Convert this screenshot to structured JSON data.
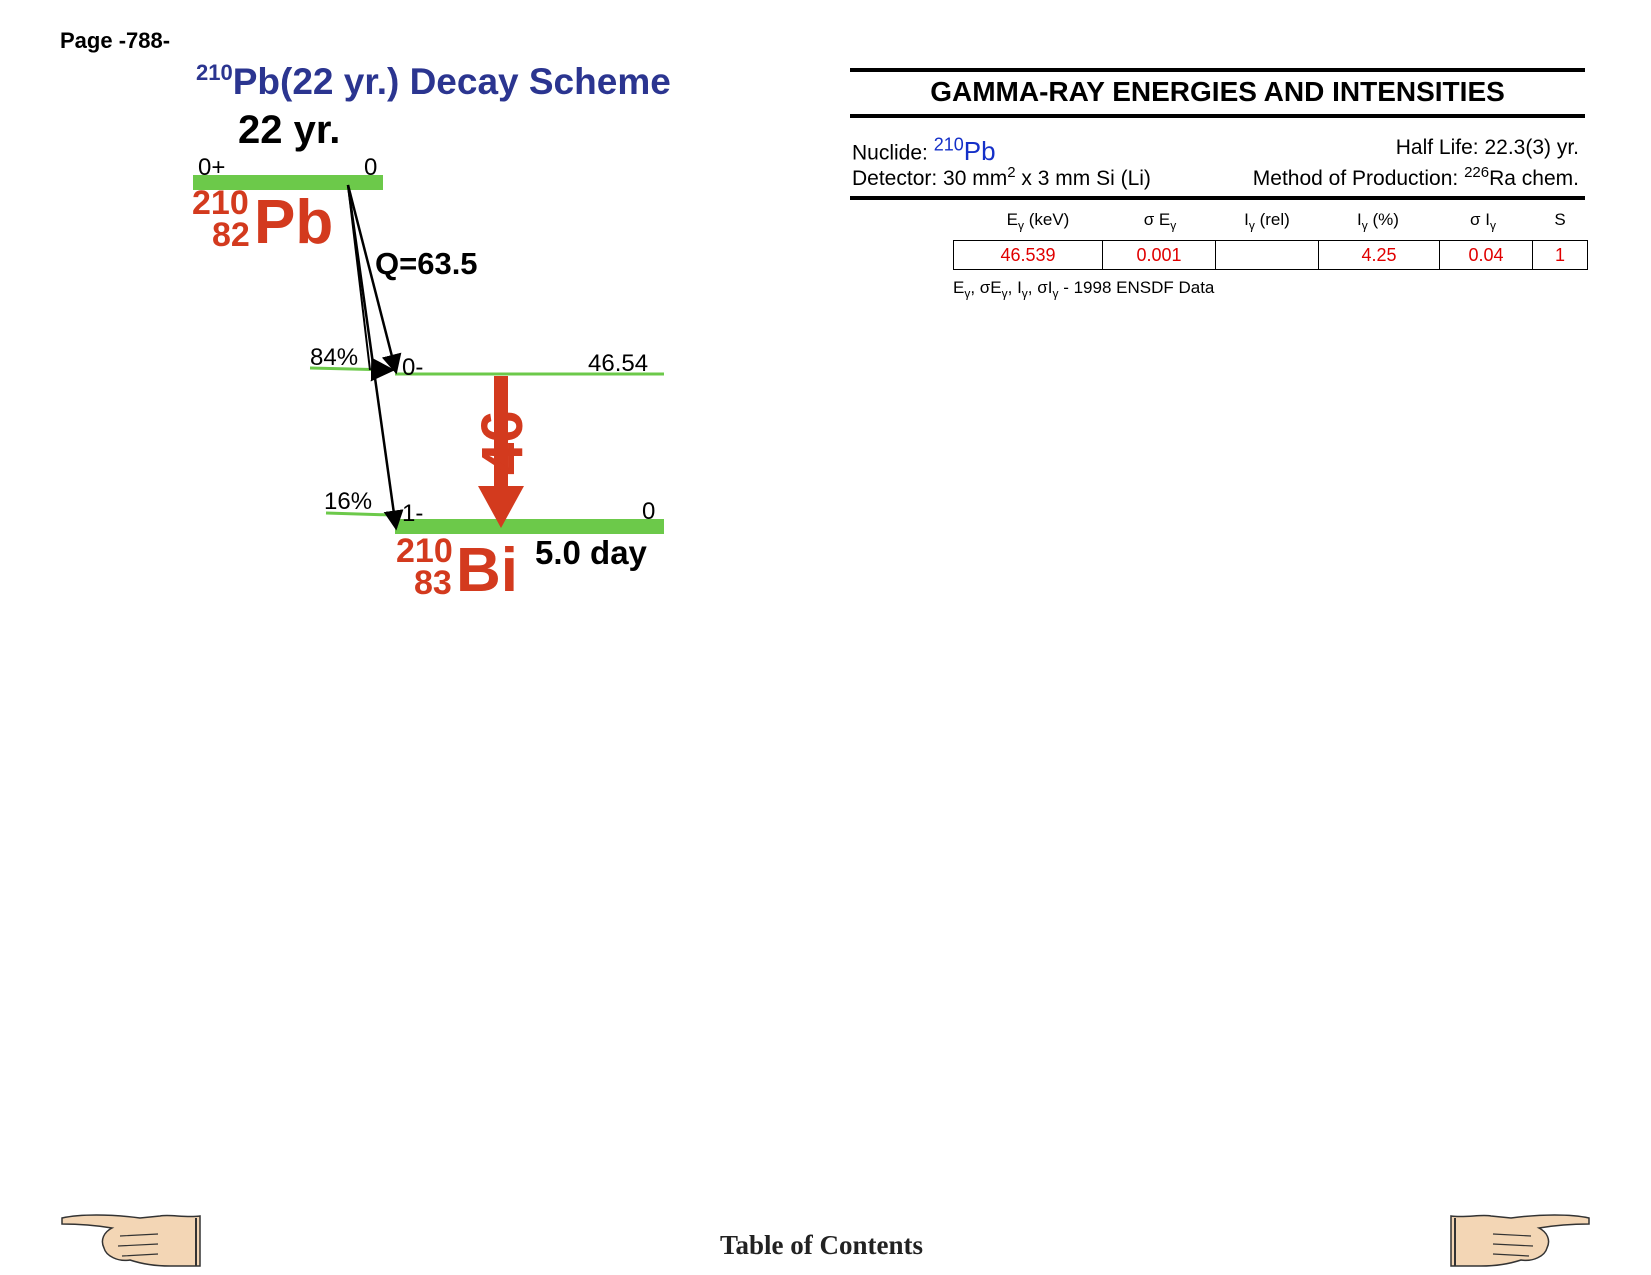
{
  "page": {
    "label": "Page -788-"
  },
  "scheme": {
    "title_sup": "210",
    "title_main": "Pb(22 yr.) Decay Scheme",
    "parent_halflife": "22 yr.",
    "parent_spin": "0+",
    "parent_energy": "0",
    "parent": {
      "mass": "210",
      "atomic": "82",
      "symbol": "Pb"
    },
    "q_value": "Q=63.5",
    "level1": {
      "spin": "0-",
      "energy": "46.54",
      "branch": "84%"
    },
    "level0": {
      "spin": "1-",
      "energy": "0",
      "branch": "16%"
    },
    "gamma_label": "46",
    "daughter": {
      "mass": "210",
      "atomic": "83",
      "symbol": "Bi"
    },
    "daughter_halflife": "5.0 day",
    "colors": {
      "title": "#2b3590",
      "nuclide": "#d33a1e",
      "level": "#6cc94a",
      "arrow": "#d33a1e"
    }
  },
  "gamma": {
    "title": "GAMMA-RAY ENERGIES AND INTENSITIES",
    "nuclide_label": "Nuclide:",
    "nuclide_sup": "210",
    "nuclide_sym": "Pb",
    "halflife_label": "Half Life: 22.3(3) yr.",
    "detector_pre": "Detector: 30 mm",
    "detector_sup": "2",
    "detector_post": " x 3 mm Si (Li)",
    "production_pre": "Method of Production: ",
    "production_sup": "226",
    "production_post": "Ra chem.",
    "columns": [
      "Eγ (keV)",
      "σ Eγ",
      "Iγ (rel)",
      "Iγ (%)",
      "σ Iγ",
      "S"
    ],
    "rows": [
      {
        "e": "46.539",
        "se": "0.001",
        "irel": "",
        "ipct": "4.25",
        "si": "0.04",
        "s": "1"
      }
    ],
    "note_source": "1998 ENSDF Data"
  },
  "footer": {
    "toc": "Table of Contents"
  },
  "icons": {
    "left": "pointing-hand-left-icon",
    "right": "pointing-hand-right-icon"
  }
}
